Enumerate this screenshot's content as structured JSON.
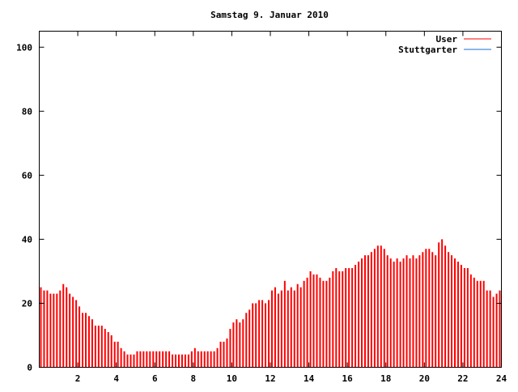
{
  "chart_data": {
    "type": "bar",
    "title": "Samstag 9. Januar 2010",
    "xlabel": "",
    "ylabel": "",
    "xlim": [
      0,
      24
    ],
    "ylim": [
      0,
      105
    ],
    "x_ticks": [
      2,
      4,
      6,
      8,
      10,
      12,
      14,
      16,
      18,
      20,
      22,
      24
    ],
    "y_ticks": [
      0,
      20,
      40,
      60,
      80,
      100
    ],
    "x_step_hours": 0.1667,
    "grid": false,
    "legend_position": "top-right",
    "series": [
      {
        "name": "User",
        "color": "#ff0000",
        "values": [
          25,
          24,
          24,
          23,
          23,
          23,
          24,
          26,
          25,
          23,
          22,
          21,
          19,
          17,
          17,
          16,
          15,
          13,
          13,
          13,
          12,
          11,
          10,
          8,
          8,
          6,
          5,
          4,
          4,
          4,
          5,
          5,
          5,
          5,
          5,
          5,
          5,
          5,
          5,
          5,
          5,
          4,
          4,
          4,
          4,
          4,
          4,
          5,
          6,
          5,
          5,
          5,
          5,
          5,
          5,
          6,
          8,
          8,
          9,
          12,
          14,
          15,
          14,
          15,
          17,
          18,
          20,
          20,
          21,
          21,
          20,
          21,
          24,
          25,
          23,
          24,
          27,
          24,
          25,
          24,
          26,
          25,
          27,
          28,
          30,
          29,
          29,
          28,
          27,
          27,
          28,
          30,
          31,
          30,
          30,
          31,
          31,
          31,
          32,
          33,
          34,
          35,
          35,
          36,
          37,
          38,
          38,
          37,
          35,
          34,
          33,
          34,
          33,
          34,
          35,
          34,
          35,
          34,
          35,
          36,
          37,
          37,
          36,
          35,
          39,
          40,
          38,
          36,
          35,
          34,
          33,
          32,
          31,
          31,
          29,
          28,
          27,
          27,
          27,
          24,
          24,
          22,
          23,
          24
        ]
      },
      {
        "name": "Stuttgarter",
        "color": "#1a6fd6",
        "values": []
      }
    ]
  }
}
